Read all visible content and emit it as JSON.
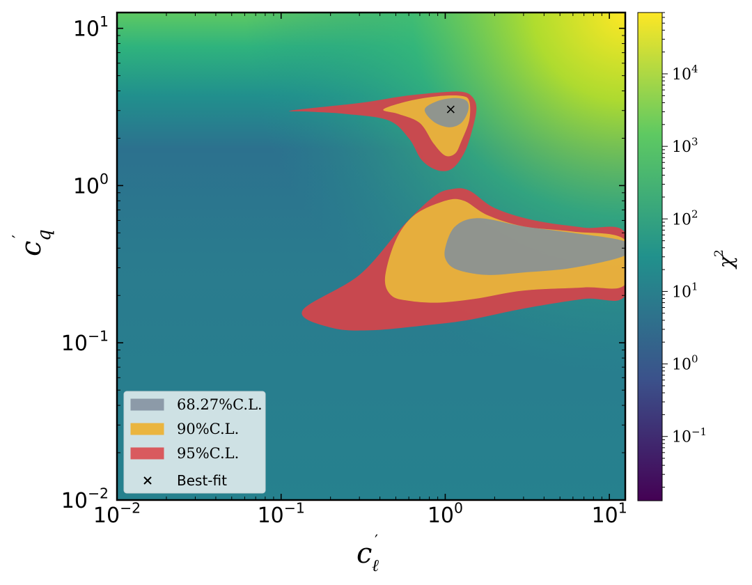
{
  "chart_data": {
    "type": "heatmap",
    "title": "",
    "x_scale": "log",
    "y_scale": "log",
    "xlim": [
      0.01,
      12.5
    ],
    "ylim": [
      0.01,
      12.6
    ],
    "x_ticks": [
      {
        "value": 0.01,
        "base": "10",
        "exp": "−2"
      },
      {
        "value": 0.1,
        "base": "10",
        "exp": "−1"
      },
      {
        "value": 1,
        "base": "10",
        "exp": "0"
      },
      {
        "value": 10,
        "base": "10",
        "exp": "1"
      }
    ],
    "y_ticks": [
      {
        "value": 0.01,
        "base": "10",
        "exp": "−2"
      },
      {
        "value": 0.1,
        "base": "10",
        "exp": "−1"
      },
      {
        "value": 1,
        "base": "10",
        "exp": "0"
      },
      {
        "value": 10,
        "base": "10",
        "exp": "1"
      }
    ],
    "xlabel": {
      "base": "c",
      "prime": "′",
      "sub": "ℓ"
    },
    "ylabel": {
      "base": "c",
      "prime": "′",
      "sub": "q"
    },
    "colorbar": {
      "label": "χ",
      "label_sup": "2",
      "scale": "log",
      "range": [
        0.013,
        70000
      ],
      "colormap": [
        "#440154",
        "#3b528b",
        "#21918c",
        "#5ec962",
        "#fde725"
      ],
      "ticks": [
        {
          "value": 0.1,
          "base": "10",
          "exp": "−1"
        },
        {
          "value": 1,
          "base": "10",
          "exp": "0"
        },
        {
          "value": 10,
          "base": "10",
          "exp": "1"
        },
        {
          "value": 100,
          "base": "10",
          "exp": "2"
        },
        {
          "value": 1000,
          "base": "10",
          "exp": "3"
        },
        {
          "value": 10000,
          "base": "10",
          "exp": "4"
        }
      ]
    },
    "regions": [
      {
        "name": "95% C.L.",
        "color": "#d1464c",
        "upper_island": [
          [
            0.115,
            3.0
          ],
          [
            0.3,
            3.35
          ],
          [
            0.55,
            3.7
          ],
          [
            0.9,
            3.9
          ],
          [
            1.25,
            3.95
          ],
          [
            1.45,
            3.7
          ],
          [
            1.55,
            3.1
          ],
          [
            1.45,
            2.2
          ],
          [
            1.3,
            1.6
          ],
          [
            1.1,
            1.28
          ],
          [
            0.9,
            1.25
          ],
          [
            0.72,
            1.45
          ],
          [
            0.6,
            2.0
          ],
          [
            0.45,
            2.6
          ],
          [
            0.25,
            2.85
          ],
          [
            0.15,
            2.95
          ]
        ],
        "lower_band": [
          [
            0.135,
            0.16
          ],
          [
            0.3,
            0.27
          ],
          [
            0.55,
            0.55
          ],
          [
            0.85,
            0.85
          ],
          [
            1.1,
            0.95
          ],
          [
            1.4,
            0.93
          ],
          [
            2.0,
            0.72
          ],
          [
            3.5,
            0.6
          ],
          [
            7,
            0.54
          ],
          [
            12.5,
            0.5
          ],
          [
            12.5,
            0.2
          ],
          [
            7,
            0.19
          ],
          [
            3,
            0.165
          ],
          [
            1.4,
            0.14
          ],
          [
            0.8,
            0.13
          ],
          [
            0.35,
            0.12
          ],
          [
            0.2,
            0.125
          ]
        ]
      },
      {
        "name": "90% C.L.",
        "color": "#e8b43c",
        "upper_island": [
          [
            0.42,
            3.05
          ],
          [
            0.6,
            3.45
          ],
          [
            0.9,
            3.7
          ],
          [
            1.25,
            3.72
          ],
          [
            1.4,
            3.45
          ],
          [
            1.4,
            2.6
          ],
          [
            1.25,
            1.9
          ],
          [
            1.15,
            1.6
          ],
          [
            1.0,
            1.55
          ],
          [
            0.85,
            1.85
          ],
          [
            0.7,
            2.5
          ],
          [
            0.52,
            2.85
          ]
        ],
        "lower_band": [
          [
            0.43,
            0.26
          ],
          [
            0.5,
            0.45
          ],
          [
            0.65,
            0.65
          ],
          [
            1.0,
            0.8
          ],
          [
            1.3,
            0.8
          ],
          [
            1.8,
            0.65
          ],
          [
            3,
            0.55
          ],
          [
            6,
            0.51
          ],
          [
            12.5,
            0.45
          ],
          [
            12.5,
            0.235
          ],
          [
            7,
            0.225
          ],
          [
            3,
            0.215
          ],
          [
            1.5,
            0.19
          ],
          [
            0.9,
            0.18
          ],
          [
            0.6,
            0.185
          ],
          [
            0.47,
            0.2
          ]
        ]
      },
      {
        "name": "68.27% C.L.",
        "color": "#7d8fa0",
        "upper_island": [
          [
            0.75,
            3.05
          ],
          [
            0.9,
            3.45
          ],
          [
            1.15,
            3.6
          ],
          [
            1.35,
            3.45
          ],
          [
            1.38,
            3.0
          ],
          [
            1.25,
            2.5
          ],
          [
            1.05,
            2.35
          ],
          [
            0.85,
            2.55
          ]
        ],
        "lower_band": [
          [
            1.0,
            0.4
          ],
          [
            1.15,
            0.55
          ],
          [
            1.6,
            0.62
          ],
          [
            3,
            0.55
          ],
          [
            6,
            0.5
          ],
          [
            12.5,
            0.44
          ],
          [
            12.5,
            0.36
          ],
          [
            6,
            0.3
          ],
          [
            3,
            0.28
          ],
          [
            1.8,
            0.27
          ],
          [
            1.2,
            0.29
          ],
          [
            1.02,
            0.33
          ]
        ]
      }
    ],
    "best_fit": {
      "name": "Best-fit",
      "x": 1.08,
      "y": 3.05
    },
    "legend": {
      "position": "lower-left",
      "entries": [
        {
          "label": "68.27%C.L.",
          "color": "#8c9aa8",
          "kind": "patch"
        },
        {
          "label": "90%C.L.",
          "color": "#eab53f",
          "kind": "patch"
        },
        {
          "label": "95%C.L.",
          "color": "#d95a5e",
          "kind": "patch"
        },
        {
          "label": "Best-fit",
          "color": "#000000",
          "kind": "marker"
        }
      ]
    }
  }
}
